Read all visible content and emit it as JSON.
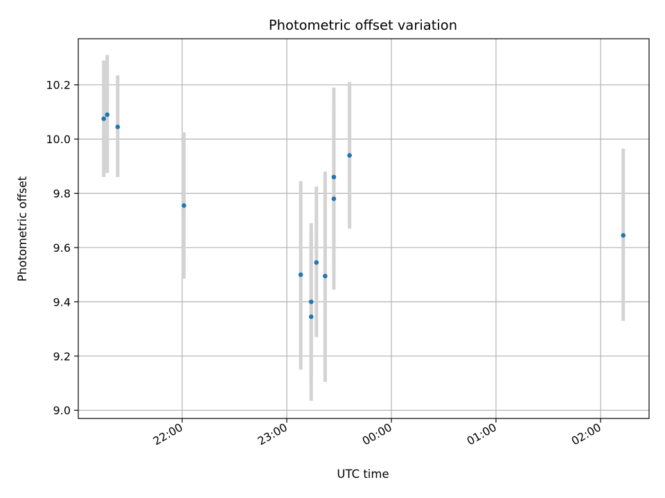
{
  "chart_data": {
    "type": "scatter",
    "title": "Photometric offset variation",
    "xlabel": "UTC time",
    "ylabel": "Photometric offset",
    "x_tick_labels": [
      "22:00",
      "23:00",
      "00:00",
      "01:00",
      "02:00"
    ],
    "y_tick_labels": [
      "9.0",
      "9.2",
      "9.4",
      "9.6",
      "9.8",
      "10.0",
      "10.2"
    ],
    "y_ticks": [
      9.0,
      9.2,
      9.4,
      9.6,
      9.8,
      10.0,
      10.2
    ],
    "ylim": [
      8.97,
      10.37
    ],
    "grid": true,
    "colors": {
      "point": "#1f77b4",
      "errorbar": "#d3d3d3",
      "grid": "#b0b0b0"
    },
    "points": [
      {
        "x": "21:15",
        "y": 10.075,
        "ylow": 9.86,
        "yhigh": 10.29
      },
      {
        "x": "21:17",
        "y": 10.09,
        "ylow": 9.875,
        "yhigh": 10.31
      },
      {
        "x": "21:23",
        "y": 10.045,
        "ylow": 9.86,
        "yhigh": 10.235
      },
      {
        "x": "22:01",
        "y": 9.755,
        "ylow": 9.485,
        "yhigh": 10.025
      },
      {
        "x": "23:08",
        "y": 9.5,
        "ylow": 9.15,
        "yhigh": 9.845
      },
      {
        "x": "23:14",
        "y": 9.4,
        "ylow": 9.12,
        "yhigh": 9.69
      },
      {
        "x": "23:14",
        "y": 9.345,
        "ylow": 9.035,
        "yhigh": 9.66
      },
      {
        "x": "23:17",
        "y": 9.545,
        "ylow": 9.27,
        "yhigh": 9.825
      },
      {
        "x": "23:22",
        "y": 9.495,
        "ylow": 9.105,
        "yhigh": 9.88
      },
      {
        "x": "23:27",
        "y": 9.78,
        "ylow": 9.445,
        "yhigh": 10.115
      },
      {
        "x": "23:27",
        "y": 9.86,
        "ylow": 9.53,
        "yhigh": 10.19
      },
      {
        "x": "23:36",
        "y": 9.94,
        "ylow": 9.67,
        "yhigh": 10.21
      },
      {
        "x": "02:13",
        "y": 9.645,
        "ylow": 9.33,
        "yhigh": 9.965
      }
    ]
  }
}
